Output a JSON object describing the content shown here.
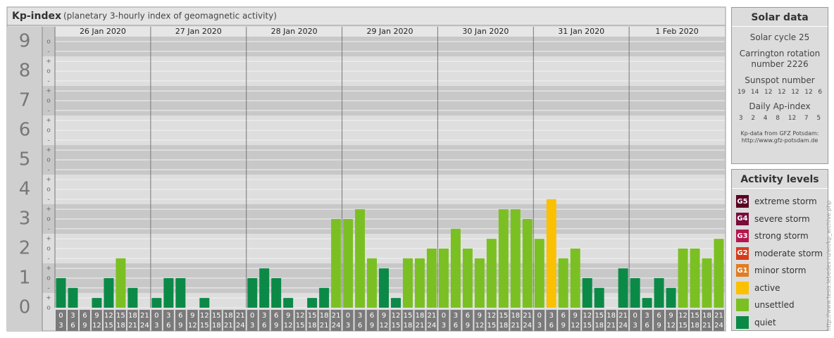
{
  "chart_data": {
    "type": "bar",
    "title": "Kp-index",
    "subtitle": "(planetary 3-hourly index of geomagnetic activity)",
    "days": [
      "26 Jan 2020",
      "27 Jan 2020",
      "28 Jan 2020",
      "29 Jan 2020",
      "30 Jan 2020",
      "31 Jan 2020",
      "1 Feb 2020"
    ],
    "hours_start": [
      "0",
      "3",
      "6",
      "9",
      "12",
      "15",
      "18",
      "21"
    ],
    "hours_end": [
      "3",
      "6",
      "9",
      "12",
      "15",
      "18",
      "21",
      "24"
    ],
    "values": [
      1,
      0.67,
      0,
      0.33,
      1,
      1.67,
      0.67,
      0,
      0.33,
      1,
      1,
      0,
      0.33,
      0,
      0,
      0,
      1,
      1.33,
      1,
      0.33,
      0,
      0.33,
      0.67,
      3,
      3,
      3.33,
      1.67,
      1.33,
      0.33,
      1.67,
      1.67,
      2,
      2,
      2.67,
      2,
      1.67,
      2.33,
      3.33,
      3.33,
      3,
      2.33,
      3.67,
      1.67,
      2,
      1,
      0.67,
      0,
      1.33,
      1,
      0.33,
      1,
      0.67,
      2,
      2,
      1.67,
      2.33
    ],
    "colors": [
      "#0b8a47",
      "#0b8a47",
      "#0b8a47",
      "#0b8a47",
      "#0b8a47",
      "#7bc022",
      "#0b8a47",
      "#0b8a47",
      "#0b8a47",
      "#0b8a47",
      "#0b8a47",
      "#0b8a47",
      "#0b8a47",
      "#0b8a47",
      "#0b8a47",
      "#0b8a47",
      "#0b8a47",
      "#0b8a47",
      "#0b8a47",
      "#0b8a47",
      "#0b8a47",
      "#0b8a47",
      "#0b8a47",
      "#7bc022",
      "#7bc022",
      "#7bc022",
      "#7bc022",
      "#0b8a47",
      "#0b8a47",
      "#7bc022",
      "#7bc022",
      "#7bc022",
      "#7bc022",
      "#7bc022",
      "#7bc022",
      "#7bc022",
      "#7bc022",
      "#7bc022",
      "#7bc022",
      "#7bc022",
      "#7bc022",
      "#fbc000",
      "#7bc022",
      "#7bc022",
      "#0b8a47",
      "#0b8a47",
      "#0b8a47",
      "#0b8a47",
      "#0b8a47",
      "#0b8a47",
      "#0b8a47",
      "#0b8a47",
      "#7bc022",
      "#7bc022",
      "#7bc022",
      "#7bc022"
    ],
    "ylim": [
      0,
      9
    ],
    "yticks": [
      0,
      1,
      2,
      3,
      4,
      5,
      6,
      7,
      8,
      9
    ],
    "yminor_ticks": [
      {
        "value": 0,
        "label": "o"
      },
      {
        "value": 0.33,
        "label": "+"
      },
      {
        "value": 0.67,
        "label": "-"
      },
      {
        "value": 1,
        "label": "o"
      },
      {
        "value": 1.33,
        "label": "+"
      },
      {
        "value": 1.67,
        "label": "-"
      },
      {
        "value": 2,
        "label": "o"
      },
      {
        "value": 2.33,
        "label": "+"
      },
      {
        "value": 2.67,
        "label": "-"
      },
      {
        "value": 3,
        "label": "o"
      },
      {
        "value": 3.33,
        "label": "+"
      },
      {
        "value": 3.67,
        "label": "-"
      },
      {
        "value": 4,
        "label": "o"
      },
      {
        "value": 4.33,
        "label": "+"
      },
      {
        "value": 4.67,
        "label": "-"
      },
      {
        "value": 5,
        "label": "o"
      },
      {
        "value": 5.33,
        "label": "+"
      },
      {
        "value": 5.67,
        "label": "-"
      },
      {
        "value": 6,
        "label": "o"
      },
      {
        "value": 6.33,
        "label": "+"
      },
      {
        "value": 6.67,
        "label": "-"
      },
      {
        "value": 7,
        "label": "o"
      },
      {
        "value": 7.33,
        "label": "+"
      },
      {
        "value": 7.67,
        "label": "-"
      },
      {
        "value": 8,
        "label": "o"
      },
      {
        "value": 8.33,
        "label": "+"
      },
      {
        "value": 8.67,
        "label": "-"
      },
      {
        "value": 9,
        "label": "o"
      }
    ],
    "grid": true
  },
  "solar_data": {
    "title": "Solar data",
    "cycle": "Solar cycle 25",
    "carrington": "Carrington rotation number 2226",
    "sunspot_title": "Sunspot number",
    "sunspot": [
      "19",
      "14",
      "12",
      "12",
      "12",
      "12",
      "6"
    ],
    "ap_title": "Daily Ap-index",
    "ap": [
      "3",
      "2",
      "4",
      "8",
      "12",
      "7",
      "5"
    ],
    "source": "Kp-data from GFZ Potsdam:",
    "source_url": "http://www.gfz-potsdam.de"
  },
  "activity_levels": {
    "title": "Activity levels",
    "items": [
      {
        "code": "G5",
        "label": "extreme storm",
        "color": "#5a0022"
      },
      {
        "code": "G4",
        "label": "severe storm",
        "color": "#7a0c3c"
      },
      {
        "code": "G3",
        "label": "strong storm",
        "color": "#b5164f"
      },
      {
        "code": "G2",
        "label": "moderate storm",
        "color": "#d63c1b"
      },
      {
        "code": "G1",
        "label": "minor storm",
        "color": "#e07c22"
      },
      {
        "label": "active",
        "color": "#fbc000"
      },
      {
        "label": "unsettled",
        "color": "#7bc022"
      },
      {
        "label": "quiet",
        "color": "#0b8a47"
      }
    ]
  },
  "source_link": "http://www.tesis.lebedev.ru/en/kp_archive.php"
}
